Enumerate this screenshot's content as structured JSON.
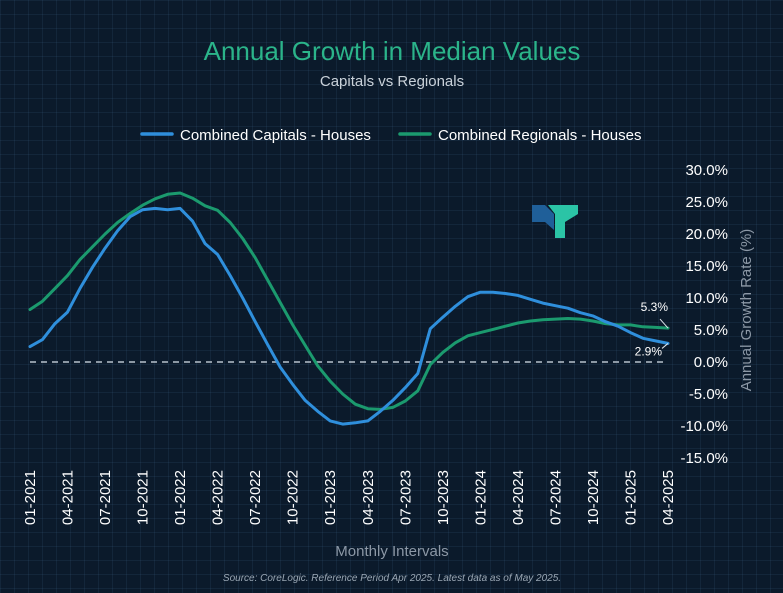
{
  "colors": {
    "background": "#0b1a2b",
    "title": "#2bb48a",
    "capitals": "#2f8fdc",
    "regionals": "#1b9a6e",
    "text": "#ffffff",
    "muted": "#9aa7b4",
    "zero_line": "#b8c2cc",
    "logo_dark": "#1f5f99",
    "logo_teal": "#2bc4a6"
  },
  "header": {
    "title": "Annual Growth in Median Values",
    "subtitle": "Capitals vs Regionals"
  },
  "footer": {
    "source": "Source: CoreLogic. Reference Period Apr 2025. Latest data as of May 2025."
  },
  "chart_data": {
    "type": "line",
    "title": "Annual Growth in Median Values",
    "subtitle": "Capitals vs Regionals",
    "xlabel": "Monthly Intervals",
    "ylabel": "Annual Growth Rate (%)",
    "ylim": [
      -15,
      30
    ],
    "yticks": [
      30,
      25,
      20,
      15,
      10,
      5,
      0,
      -5,
      -10,
      -15
    ],
    "ytick_labels": [
      "30.0%",
      "25.0%",
      "20.0%",
      "15.0%",
      "10.0%",
      "5.0%",
      "0.0%",
      "-5.0%",
      "-10.0%",
      "-15.0%"
    ],
    "xtick_labels": [
      "01-2021",
      "04-2021",
      "07-2021",
      "10-2021",
      "01-2022",
      "04-2022",
      "07-2022",
      "10-2022",
      "01-2023",
      "04-2023",
      "07-2023",
      "10-2023",
      "01-2024",
      "04-2024",
      "07-2024",
      "10-2024",
      "01-2025",
      "04-2025"
    ],
    "legend_position": "top",
    "grid": true,
    "reference_line": 0,
    "x": [
      "01-2021",
      "02-2021",
      "03-2021",
      "04-2021",
      "05-2021",
      "06-2021",
      "07-2021",
      "08-2021",
      "09-2021",
      "10-2021",
      "11-2021",
      "12-2021",
      "01-2022",
      "02-2022",
      "03-2022",
      "04-2022",
      "05-2022",
      "06-2022",
      "07-2022",
      "08-2022",
      "09-2022",
      "10-2022",
      "11-2022",
      "12-2022",
      "01-2023",
      "02-2023",
      "03-2023",
      "04-2023",
      "05-2023",
      "06-2023",
      "07-2023",
      "08-2023",
      "09-2023",
      "10-2023",
      "11-2023",
      "12-2023",
      "01-2024",
      "02-2024",
      "03-2024",
      "04-2024",
      "05-2024",
      "06-2024",
      "07-2024",
      "08-2024",
      "09-2024",
      "10-2024",
      "11-2024",
      "12-2024",
      "01-2025",
      "02-2025",
      "03-2025",
      "04-2025"
    ],
    "series": [
      {
        "name": "Combined Capitals - Houses",
        "color": "#2f8fdc",
        "end_label": "2.9%",
        "values": [
          2.4,
          3.5,
          6.0,
          7.8,
          11.5,
          14.8,
          17.8,
          20.5,
          22.7,
          23.8,
          24.0,
          23.8,
          24.0,
          22.0,
          18.5,
          16.8,
          13.5,
          10.0,
          6.3,
          2.7,
          -0.8,
          -3.5,
          -6.0,
          -7.7,
          -9.2,
          -9.7,
          -9.5,
          -9.2,
          -7.7,
          -6.0,
          -4.0,
          -1.8,
          5.2,
          7.0,
          8.7,
          10.2,
          10.9,
          10.9,
          10.7,
          10.4,
          9.8,
          9.2,
          8.8,
          8.4,
          7.7,
          7.2,
          6.3,
          5.6,
          4.6,
          3.7,
          3.3,
          2.9
        ]
      },
      {
        "name": "Combined Regionals - Houses",
        "color": "#1b9a6e",
        "end_label": "5.3%",
        "values": [
          8.2,
          9.5,
          11.5,
          13.5,
          16.0,
          18.0,
          20.0,
          21.8,
          23.2,
          24.5,
          25.5,
          26.2,
          26.4,
          25.6,
          24.4,
          23.7,
          21.8,
          19.3,
          16.3,
          12.8,
          9.3,
          5.8,
          2.6,
          -0.6,
          -3.0,
          -5.0,
          -6.6,
          -7.3,
          -7.4,
          -7.1,
          -6.1,
          -4.5,
          -0.4,
          1.5,
          3.0,
          4.1,
          4.6,
          5.1,
          5.6,
          6.1,
          6.4,
          6.6,
          6.7,
          6.8,
          6.7,
          6.4,
          6.0,
          5.8,
          5.8,
          5.5,
          5.4,
          5.3
        ]
      }
    ]
  }
}
